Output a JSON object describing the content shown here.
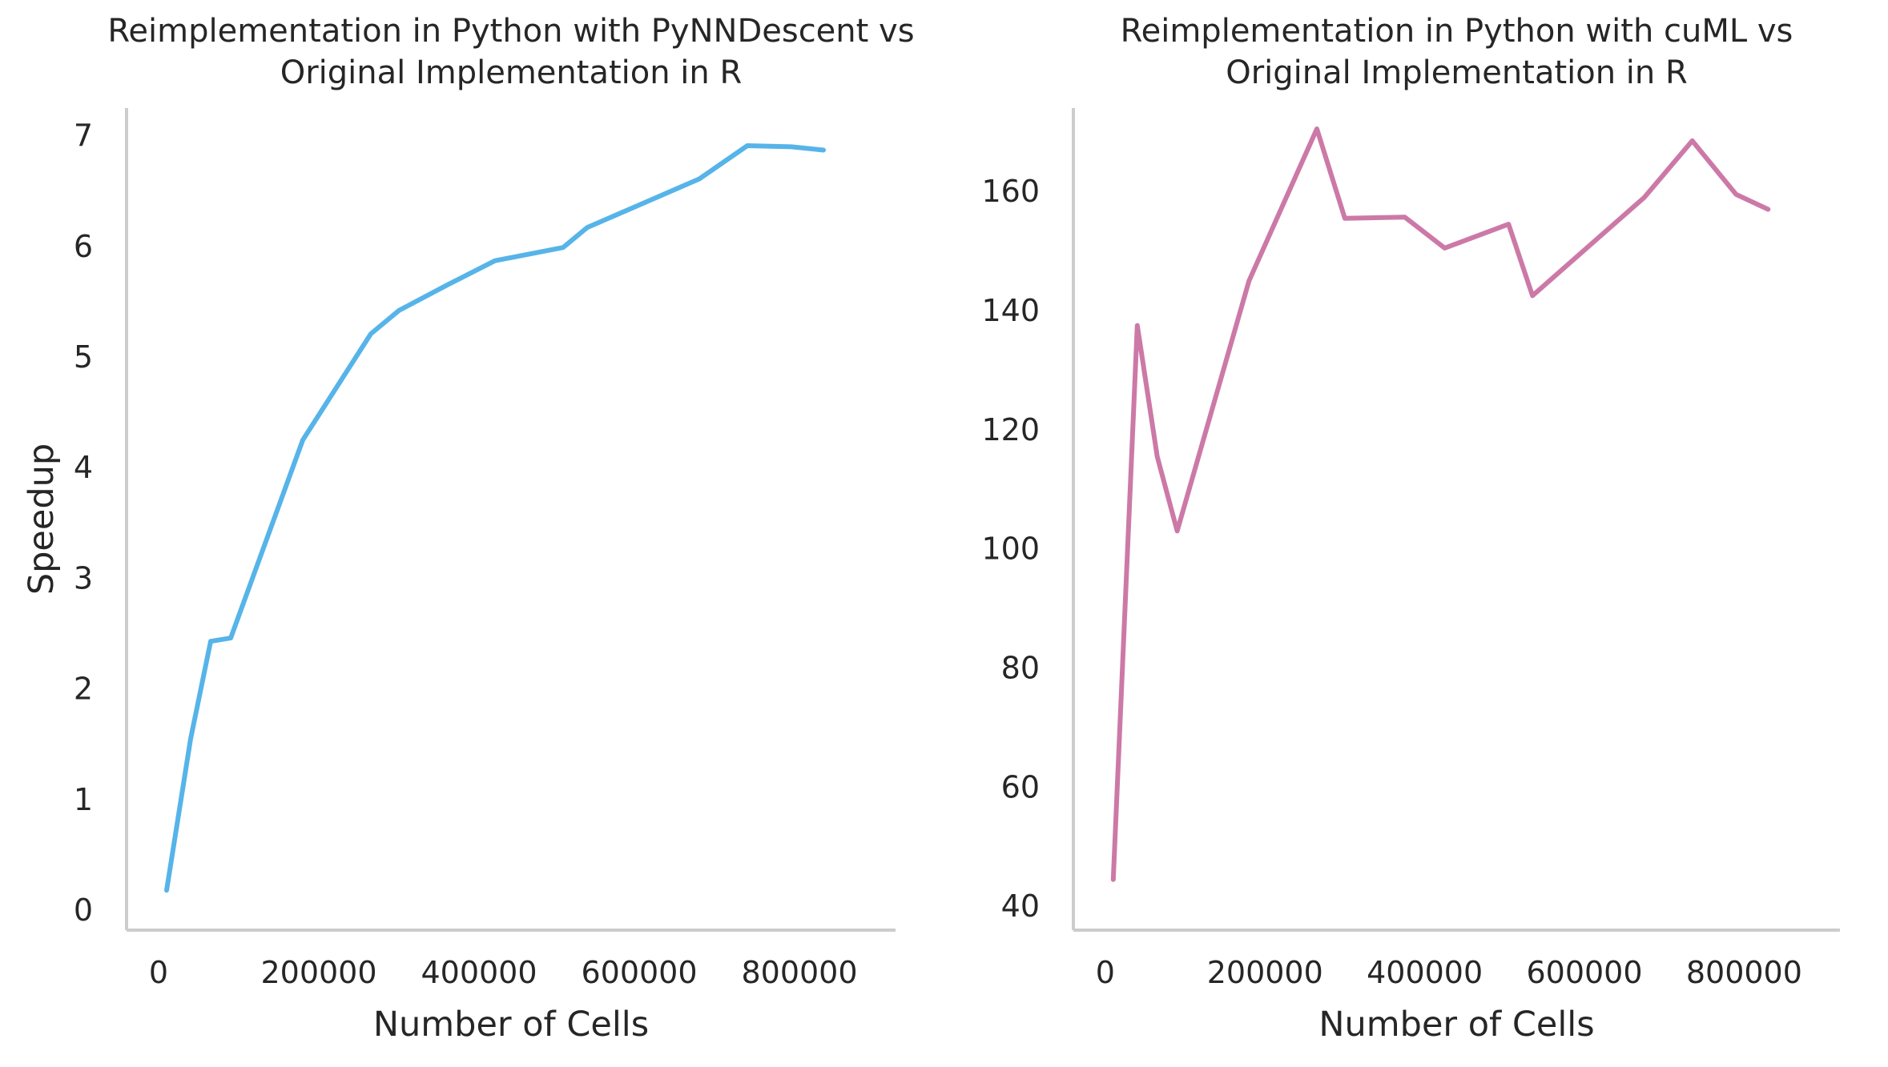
{
  "chart_data": [
    {
      "type": "line",
      "title": "Reimplementation in Python with PyNNDescent vs\nOriginal Implementation in R",
      "xlabel": "Number of Cells",
      "ylabel": "Speedup",
      "xlim": [
        -40000,
        920000
      ],
      "ylim": [
        -0.18,
        7.25
      ],
      "xticks": [
        0,
        200000,
        400000,
        600000,
        800000
      ],
      "yticks": [
        0,
        1,
        2,
        3,
        4,
        5,
        6,
        7
      ],
      "grid": false,
      "color": "#56b4e9",
      "series": [
        {
          "x": [
            10000,
            40000,
            65000,
            90000,
            180000,
            265000,
            300000,
            360000,
            420000,
            505000,
            535000,
            675000,
            735000,
            790000,
            830000
          ],
          "values": [
            0.18,
            1.55,
            2.43,
            2.46,
            4.25,
            5.21,
            5.42,
            5.65,
            5.87,
            5.99,
            6.17,
            6.61,
            6.91,
            6.9,
            6.87
          ]
        }
      ]
    },
    {
      "type": "line",
      "title": "Reimplementation in Python with cuML vs\nOriginal Implementation in R",
      "xlabel": "Number of Cells",
      "ylabel": "",
      "xlim": [
        -40000,
        920000
      ],
      "ylim": [
        36,
        174
      ],
      "xticks": [
        0,
        200000,
        400000,
        600000,
        800000
      ],
      "yticks": [
        40,
        60,
        80,
        100,
        120,
        140,
        160
      ],
      "grid": false,
      "color": "#cc79a7",
      "series": [
        {
          "x": [
            10000,
            40000,
            65000,
            90000,
            180000,
            265000,
            300000,
            375000,
            425000,
            505000,
            535000,
            675000,
            735000,
            790000,
            830000
          ],
          "values": [
            44.5,
            137.5,
            115.5,
            103,
            145,
            170.5,
            155.5,
            155.7,
            150.5,
            154.5,
            142.5,
            159,
            168.5,
            159.5,
            157
          ]
        }
      ]
    }
  ]
}
